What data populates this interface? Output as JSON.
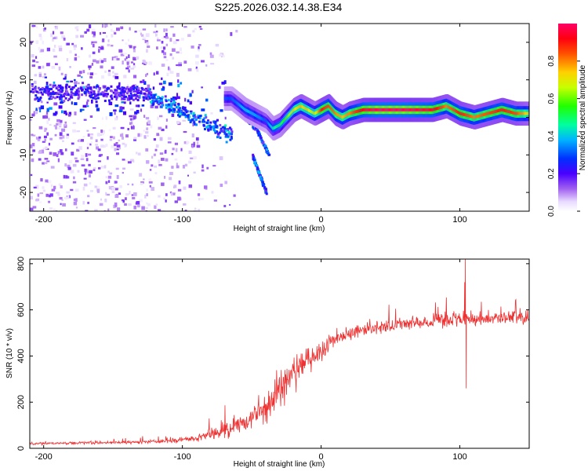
{
  "title": "S225.2026.032.14.38.E34",
  "chart_data": [
    {
      "type": "heatmap",
      "name": "spectrogram",
      "xlabel": "Height of straight line (km)",
      "ylabel": "Frequency (Hz)",
      "xlim": [
        -210,
        150
      ],
      "ylim": [
        -25,
        25
      ],
      "xticks": [
        -200,
        -100,
        0,
        100
      ],
      "yticks": [
        20,
        10,
        0,
        -10,
        -20
      ],
      "colorbar": {
        "label": "Normalized spectral amplitude",
        "range": [
          0,
          1
        ],
        "ticks": [
          0.0,
          0.2,
          0.4,
          0.6,
          0.8
        ],
        "colors": [
          "#ffffff",
          "#d9c2ff",
          "#8a2be2",
          "#5a00e0",
          "#2a00ff",
          "#0040ff",
          "#00c8ff",
          "#00ff80",
          "#40ff00",
          "#ffff00",
          "#ff8000",
          "#ff0000",
          "#ff0060"
        ]
      },
      "dominant_frequency_trace": {
        "x": [
          -65,
          -55,
          -45,
          -40,
          -35,
          -30,
          -25,
          -20,
          -15,
          -10,
          -5,
          0,
          5,
          10,
          15,
          20,
          30,
          40,
          60,
          80,
          90,
          100,
          110,
          120,
          130,
          140,
          150
        ],
        "y": [
          5,
          2,
          0,
          -1,
          -3,
          -2,
          0,
          2,
          3,
          2,
          1,
          2,
          3,
          1,
          0,
          1,
          2,
          2,
          2,
          2,
          3,
          1,
          0,
          1,
          2,
          1,
          1
        ],
        "peak_amplitude": [
          0.3,
          0.4,
          0.35,
          0.3,
          0.45,
          0.5,
          0.6,
          0.7,
          0.75,
          0.7,
          0.65,
          0.9,
          0.85,
          0.8,
          0.75,
          0.8,
          0.95,
          1.0,
          1.0,
          0.95,
          0.8,
          0.9,
          0.8,
          0.85,
          0.9,
          0.85,
          0.7
        ]
      }
    },
    {
      "type": "line",
      "name": "snr",
      "xlabel": "Height of straight line (km)",
      "ylabel": "SNR (10 * v/v)",
      "xlim": [
        -210,
        150
      ],
      "ylim": [
        0,
        820
      ],
      "xticks": [
        -200,
        -100,
        0,
        100
      ],
      "yticks": [
        0,
        200,
        400,
        600,
        800
      ],
      "color": "#ee3030",
      "trend": {
        "x": [
          -210,
          -150,
          -110,
          -90,
          -70,
          -55,
          -40,
          -30,
          -20,
          -10,
          0,
          10,
          20,
          30,
          50,
          70,
          90,
          110,
          130,
          150
        ],
        "y": [
          20,
          25,
          30,
          45,
          70,
          110,
          180,
          250,
          320,
          380,
          420,
          470,
          500,
          515,
          530,
          545,
          555,
          560,
          565,
          570
        ]
      },
      "noise_amplitude": {
        "x": [
          -210,
          -150,
          -110,
          -90,
          -70,
          -55,
          -40,
          -30,
          -20,
          -10,
          0,
          10,
          20,
          40,
          80,
          150
        ],
        "y": [
          8,
          10,
          12,
          30,
          50,
          70,
          110,
          130,
          110,
          90,
          60,
          50,
          45,
          40,
          45,
          45
        ]
      },
      "spikes": [
        {
          "x": 104,
          "y": 820
        },
        {
          "x": 104.6,
          "y": 260
        },
        {
          "x": 103.5,
          "y": 720
        }
      ]
    }
  ]
}
